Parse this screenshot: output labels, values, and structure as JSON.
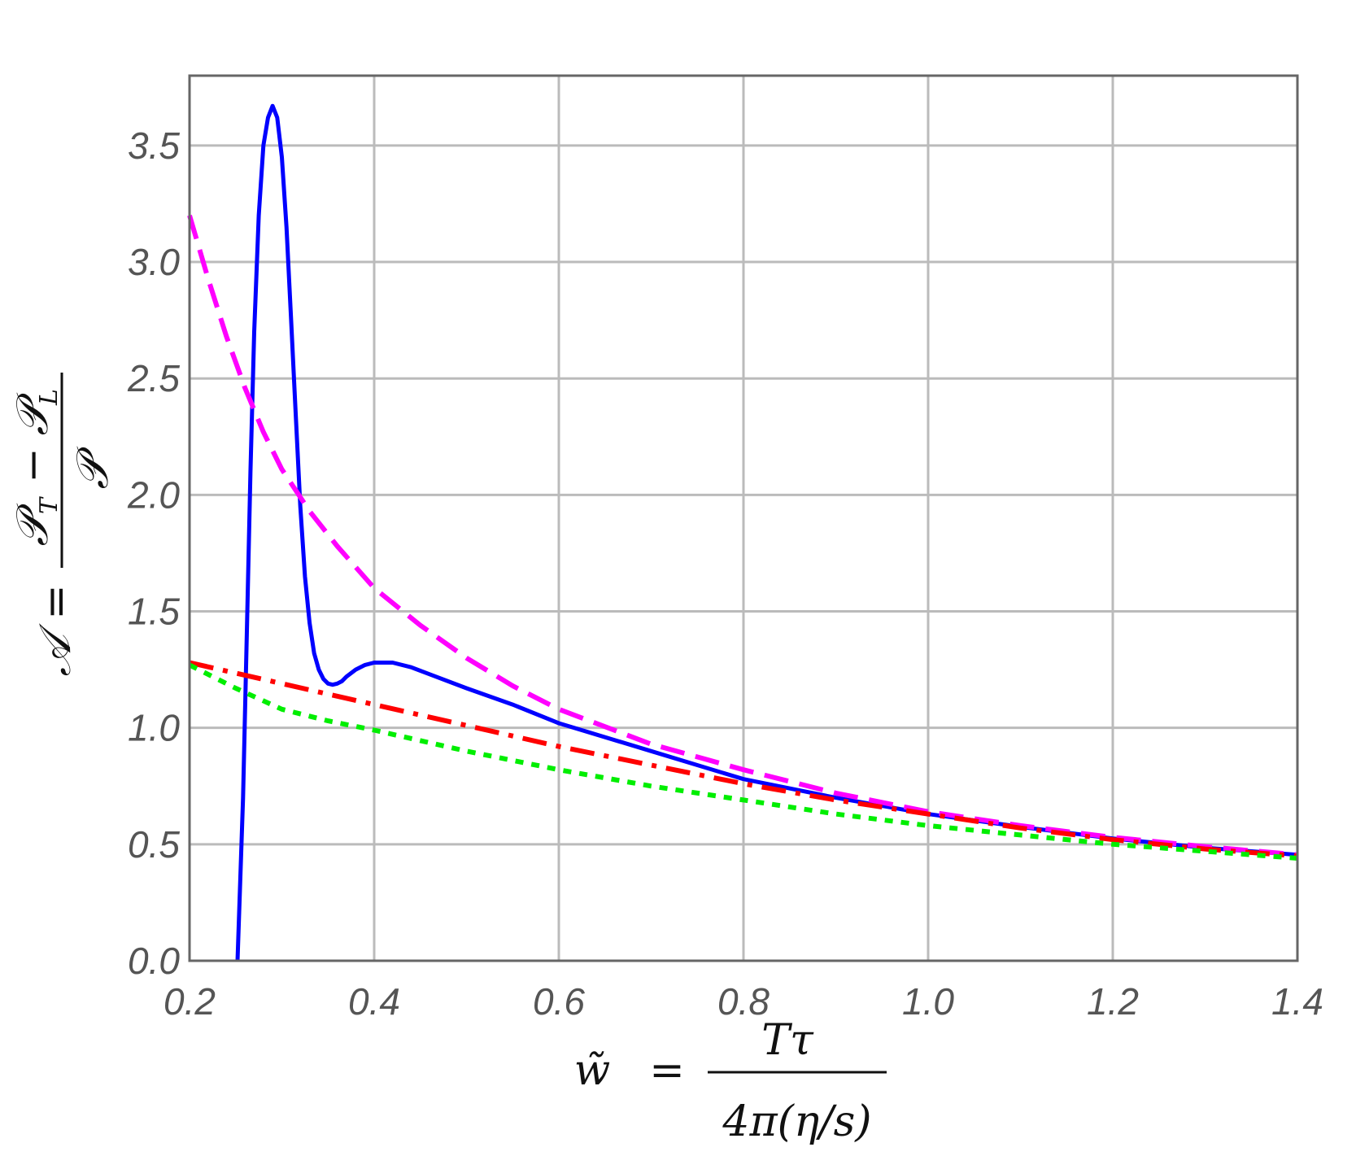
{
  "chart_data": {
    "type": "line",
    "xlim": [
      0.2,
      1.4
    ],
    "ylim": [
      0.0,
      3.8
    ],
    "x_ticks": [
      "0.2",
      "0.4",
      "0.6",
      "0.8",
      "1.0",
      "1.2",
      "1.4"
    ],
    "y_ticks": [
      "0.0",
      "0.5",
      "1.0",
      "1.5",
      "2.0",
      "2.5",
      "3.0",
      "3.5"
    ],
    "grid": true,
    "xlabel": {
      "lhs": "w̃",
      "eq": "=",
      "numerator": "Tτ",
      "denominator": "4π(η/s)"
    },
    "ylabel": {
      "lhs": "𝒜",
      "eq": "=",
      "numerator_a": "𝒫",
      "numerator_a_sub": "T",
      "minus": "−",
      "numerator_b": "𝒫",
      "numerator_b_sub": "L",
      "denominator": "𝒫"
    },
    "series": [
      {
        "color": "#0000ff",
        "style": "solid",
        "x": [
          0.252,
          0.258,
          0.262,
          0.266,
          0.27,
          0.275,
          0.28,
          0.285,
          0.29,
          0.295,
          0.3,
          0.305,
          0.31,
          0.315,
          0.32,
          0.325,
          0.33,
          0.335,
          0.34,
          0.345,
          0.35,
          0.355,
          0.36,
          0.365,
          0.37,
          0.38,
          0.39,
          0.4,
          0.42,
          0.44,
          0.46,
          0.5,
          0.55,
          0.6,
          0.7,
          0.8,
          0.9,
          1.0,
          1.1,
          1.2,
          1.3,
          1.4
        ],
        "y": [
          0.0,
          0.7,
          1.4,
          2.1,
          2.7,
          3.2,
          3.5,
          3.62,
          3.67,
          3.62,
          3.45,
          3.15,
          2.75,
          2.35,
          1.95,
          1.65,
          1.45,
          1.32,
          1.25,
          1.21,
          1.19,
          1.185,
          1.19,
          1.2,
          1.22,
          1.25,
          1.27,
          1.28,
          1.28,
          1.26,
          1.23,
          1.17,
          1.1,
          1.02,
          0.9,
          0.78,
          0.7,
          0.63,
          0.575,
          0.525,
          0.485,
          0.455
        ]
      },
      {
        "color": "#ff00ff",
        "style": "dashed",
        "x": [
          0.2,
          0.22,
          0.24,
          0.26,
          0.28,
          0.3,
          0.33,
          0.36,
          0.4,
          0.45,
          0.5,
          0.55,
          0.6,
          0.7,
          0.8,
          0.9,
          1.0,
          1.1,
          1.2,
          1.3,
          1.4
        ],
        "y": [
          3.2,
          2.93,
          2.68,
          2.46,
          2.27,
          2.11,
          1.93,
          1.78,
          1.6,
          1.44,
          1.3,
          1.18,
          1.08,
          0.93,
          0.82,
          0.72,
          0.64,
          0.58,
          0.53,
          0.49,
          0.455
        ]
      },
      {
        "color": "#ff0000",
        "style": "dashdot",
        "x": [
          0.2,
          0.3,
          0.4,
          0.5,
          0.6,
          0.7,
          0.8,
          0.9,
          1.0,
          1.1,
          1.2,
          1.3,
          1.4
        ],
        "y": [
          1.28,
          1.19,
          1.1,
          1.01,
          0.92,
          0.84,
          0.76,
          0.69,
          0.63,
          0.57,
          0.52,
          0.48,
          0.45
        ]
      },
      {
        "color": "#00ee00",
        "style": "dotted",
        "x": [
          0.2,
          0.25,
          0.3,
          0.35,
          0.4,
          0.5,
          0.6,
          0.7,
          0.8,
          0.9,
          1.0,
          1.1,
          1.2,
          1.3,
          1.4
        ],
        "y": [
          1.27,
          1.17,
          1.08,
          1.03,
          0.99,
          0.9,
          0.82,
          0.75,
          0.69,
          0.63,
          0.58,
          0.54,
          0.5,
          0.47,
          0.44
        ]
      }
    ]
  }
}
